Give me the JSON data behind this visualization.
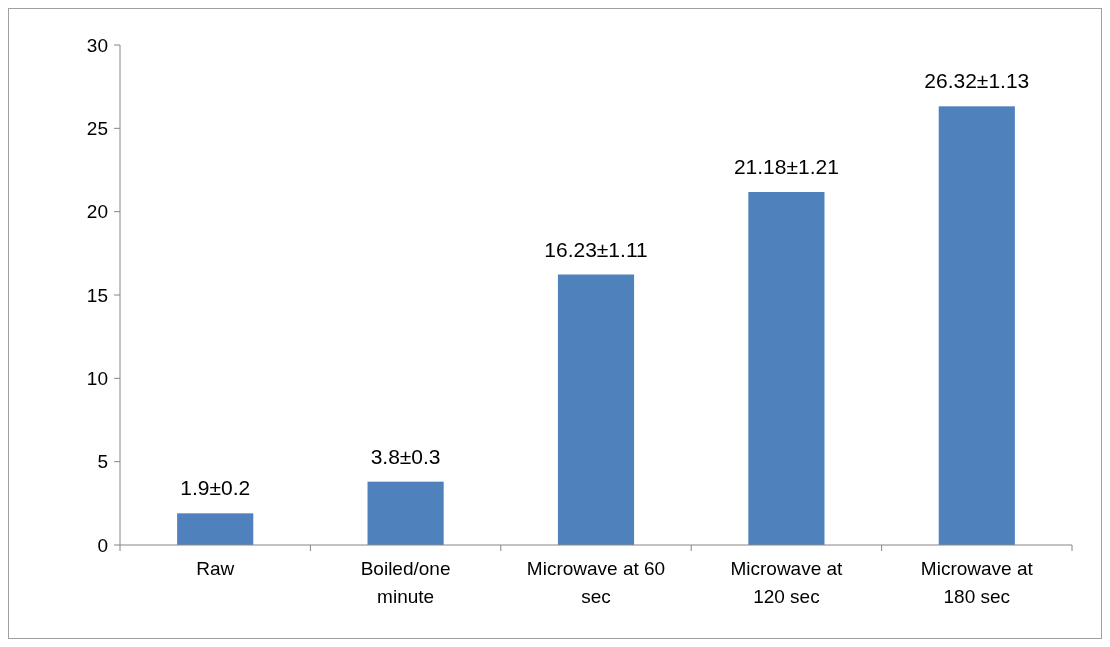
{
  "chart_data": {
    "type": "bar",
    "categories": [
      "Raw",
      "Boiled/one minute",
      "Microwave at 60 sec",
      "Microwave at 120 sec",
      "Microwave at 180 sec"
    ],
    "values": [
      1.9,
      3.8,
      16.23,
      21.18,
      26.32
    ],
    "value_labels": [
      "1.9±0.2",
      "3.8±0.3",
      "16.23±1.11",
      "21.18±1.21",
      "26.32±1.13"
    ],
    "color": "#4f81bd",
    "ylim": [
      0,
      30
    ],
    "yticks": [
      0,
      5,
      10,
      15,
      20,
      25,
      30
    ],
    "grid": false
  }
}
